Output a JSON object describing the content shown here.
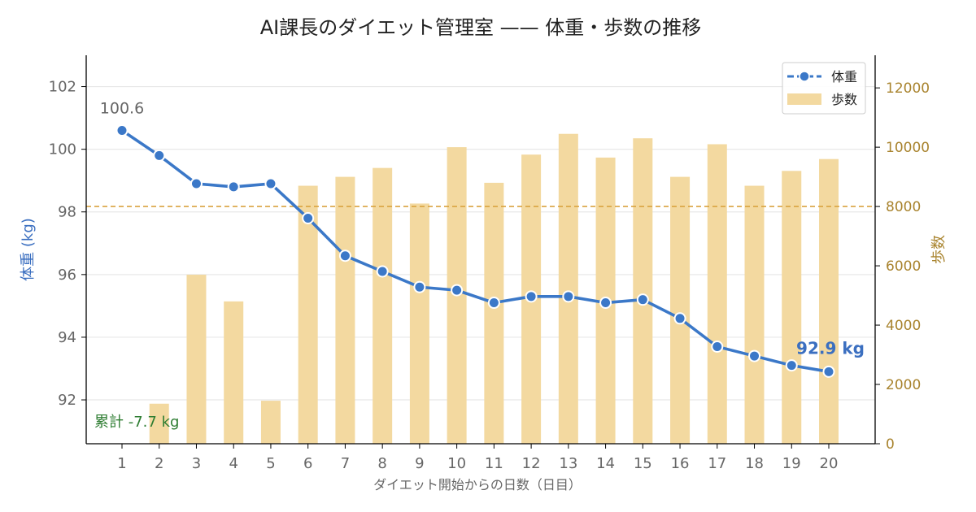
{
  "title": "AI課長のダイエット管理室 —— 体重・歩数の推移",
  "chart_data": {
    "type": "bar+line",
    "xlabel": "ダイエット開始からの日数（日目）",
    "ylabel_left": "体重 (kg)",
    "ylabel_right": "歩数",
    "x": [
      1,
      2,
      3,
      4,
      5,
      6,
      7,
      8,
      9,
      10,
      11,
      12,
      13,
      14,
      15,
      16,
      17,
      18,
      19,
      20
    ],
    "series": [
      {
        "name": "体重",
        "axis": "left",
        "kind": "line",
        "color": "#3b78c8",
        "values": [
          100.6,
          99.8,
          98.9,
          98.8,
          98.9,
          97.8,
          96.6,
          96.1,
          95.6,
          95.5,
          95.1,
          95.3,
          95.3,
          95.1,
          95.2,
          94.6,
          93.7,
          93.4,
          93.1,
          92.9
        ]
      },
      {
        "name": "歩数",
        "axis": "right",
        "kind": "bar",
        "color": "#f3d9a0",
        "values": [
          0,
          1350,
          5700,
          4800,
          1450,
          8700,
          9000,
          9300,
          8100,
          10000,
          8800,
          9750,
          10450,
          9650,
          10300,
          9000,
          10100,
          8700,
          9200,
          9600
        ]
      }
    ],
    "ylim_left": [
      90.6,
      103
    ],
    "ylim_right": [
      0,
      13100
    ],
    "yticks_left": [
      92,
      94,
      96,
      98,
      100,
      102
    ],
    "yticks_right": [
      0,
      2000,
      4000,
      6000,
      8000,
      10000,
      12000
    ],
    "target_steps": 8000,
    "grid": "horizontal",
    "legend_position": "top-right",
    "colors": {
      "weight_line": "#3b78c8",
      "step_bars": "#f3d9a0",
      "target_line": "#d9a441",
      "right_axis_text": "#a9842f",
      "left_label": "#3b6fc0",
      "total_text": "#2e7d32"
    },
    "annotations": {
      "first_weight": "100.6",
      "last_weight": "92.9 kg",
      "total_change": "累計 -7.7 kg"
    }
  }
}
